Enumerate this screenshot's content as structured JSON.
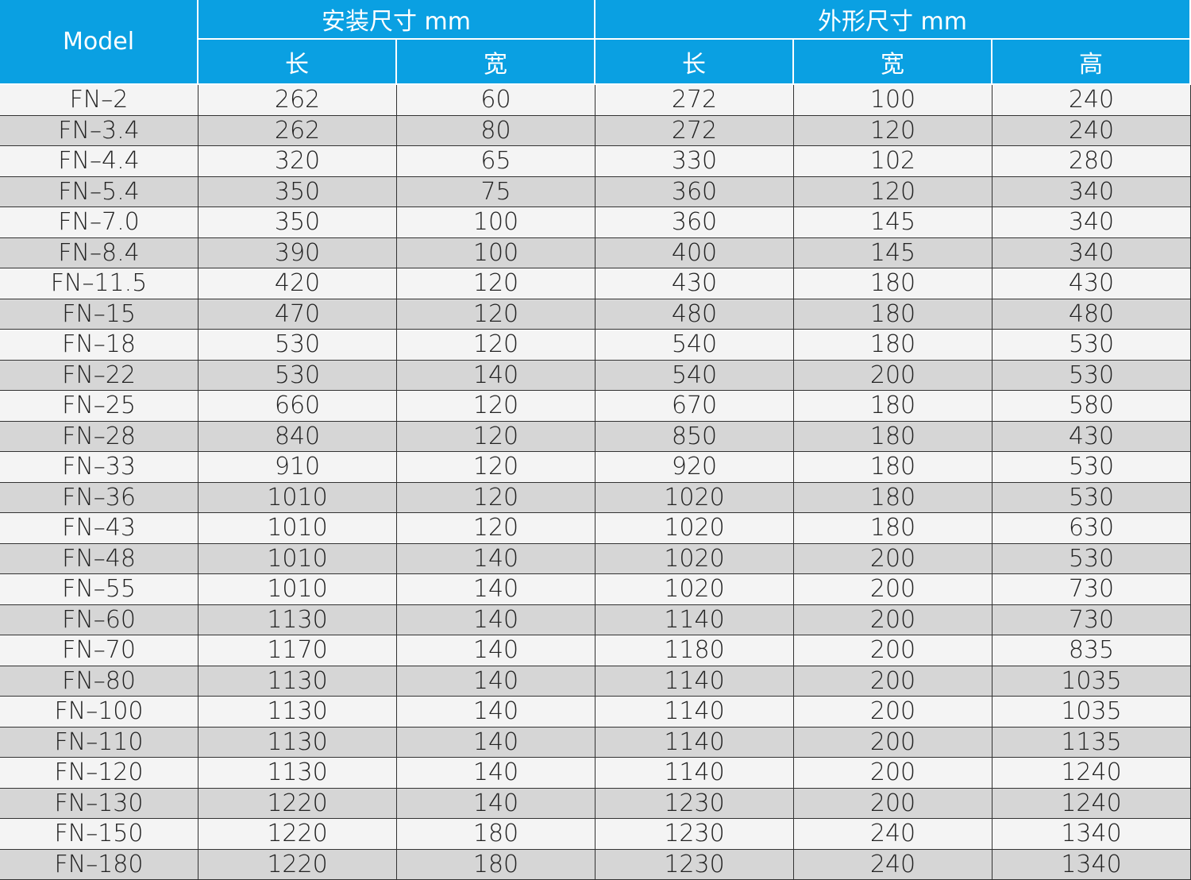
{
  "header": {
    "model": "Model",
    "group1": "安装尺寸 mm",
    "group2": "外形尺寸 mm",
    "columns": [
      "长",
      "宽",
      "长",
      "宽",
      "高"
    ]
  },
  "table": {
    "rows": [
      [
        "FN–2",
        262,
        60,
        272,
        100,
        240
      ],
      [
        "FN–3.4",
        262,
        80,
        272,
        120,
        240
      ],
      [
        "FN–4.4",
        320,
        65,
        330,
        102,
        280
      ],
      [
        "FN–5.4",
        350,
        75,
        360,
        120,
        340
      ],
      [
        "FN–7.0",
        350,
        100,
        360,
        145,
        340
      ],
      [
        "FN–8.4",
        390,
        100,
        400,
        145,
        340
      ],
      [
        "FN–11.5",
        420,
        120,
        430,
        180,
        430
      ],
      [
        "FN–15",
        470,
        120,
        480,
        180,
        480
      ],
      [
        "FN–18",
        530,
        120,
        540,
        180,
        530
      ],
      [
        "FN–22",
        530,
        140,
        540,
        200,
        530
      ],
      [
        "FN–25",
        660,
        120,
        670,
        180,
        580
      ],
      [
        "FN–28",
        840,
        120,
        850,
        180,
        430
      ],
      [
        "FN–33",
        910,
        120,
        920,
        180,
        530
      ],
      [
        "FN–36",
        1010,
        120,
        1020,
        180,
        530
      ],
      [
        "FN–43",
        1010,
        120,
        1020,
        180,
        630
      ],
      [
        "FN–48",
        1010,
        140,
        1020,
        200,
        530
      ],
      [
        "FN–55",
        1010,
        140,
        1020,
        200,
        730
      ],
      [
        "FN–60",
        1130,
        140,
        1140,
        200,
        730
      ],
      [
        "FN–70",
        1170,
        140,
        1180,
        200,
        835
      ],
      [
        "FN–80",
        1130,
        140,
        1140,
        200,
        1035
      ],
      [
        "FN–100",
        1130,
        140,
        1140,
        200,
        1035
      ],
      [
        "FN–110",
        1130,
        140,
        1140,
        200,
        1135
      ],
      [
        "FN–120",
        1130,
        140,
        1140,
        200,
        1240
      ],
      [
        "FN–130",
        1220,
        140,
        1230,
        200,
        1240
      ],
      [
        "FN–150",
        1220,
        180,
        1230,
        240,
        1340
      ],
      [
        "FN–180",
        1220,
        180,
        1230,
        240,
        1340
      ]
    ]
  }
}
